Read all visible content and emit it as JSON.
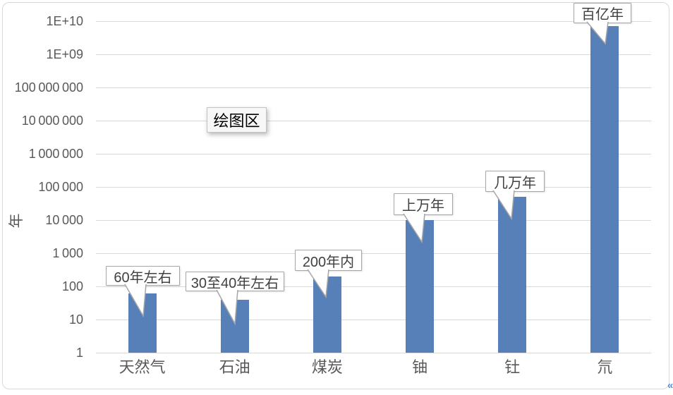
{
  "chart": {
    "y_axis_title": "年",
    "plot_area_tooltip": "绘图区",
    "y_tick_labels_bottom_to_top": [
      "1",
      "10",
      "100",
      "1 000",
      "10 000",
      "100 000",
      "1 000 000",
      "10 000 000",
      "100 000 000",
      "1E+09",
      "1E+10"
    ],
    "edge_icon": "left-double-chevron",
    "colors": {
      "bar": "#5880b8",
      "gridline": "#d9d9d9",
      "axis_text": "#595959",
      "callout_border": "#a6a6a6",
      "chart_border": "#d9d9d9",
      "edge_icon_blue": "#4a8fe2"
    }
  },
  "chart_data": {
    "type": "bar",
    "title": "",
    "categories": [
      "天然气",
      "石油",
      "煤炭",
      "铀",
      "钍",
      "氘"
    ],
    "values": [
      60,
      40,
      200,
      10000,
      50000,
      7000000000
    ],
    "value_annotations": [
      "60年左右",
      "30至40年左右",
      "200年内",
      "上万年",
      "几万年",
      "百亿年"
    ],
    "xlabel": "",
    "ylabel": "年",
    "y_scale": "log",
    "ylim": [
      1,
      10000000000
    ],
    "grid": true,
    "legend": false,
    "plot_area_label": "绘图区"
  }
}
